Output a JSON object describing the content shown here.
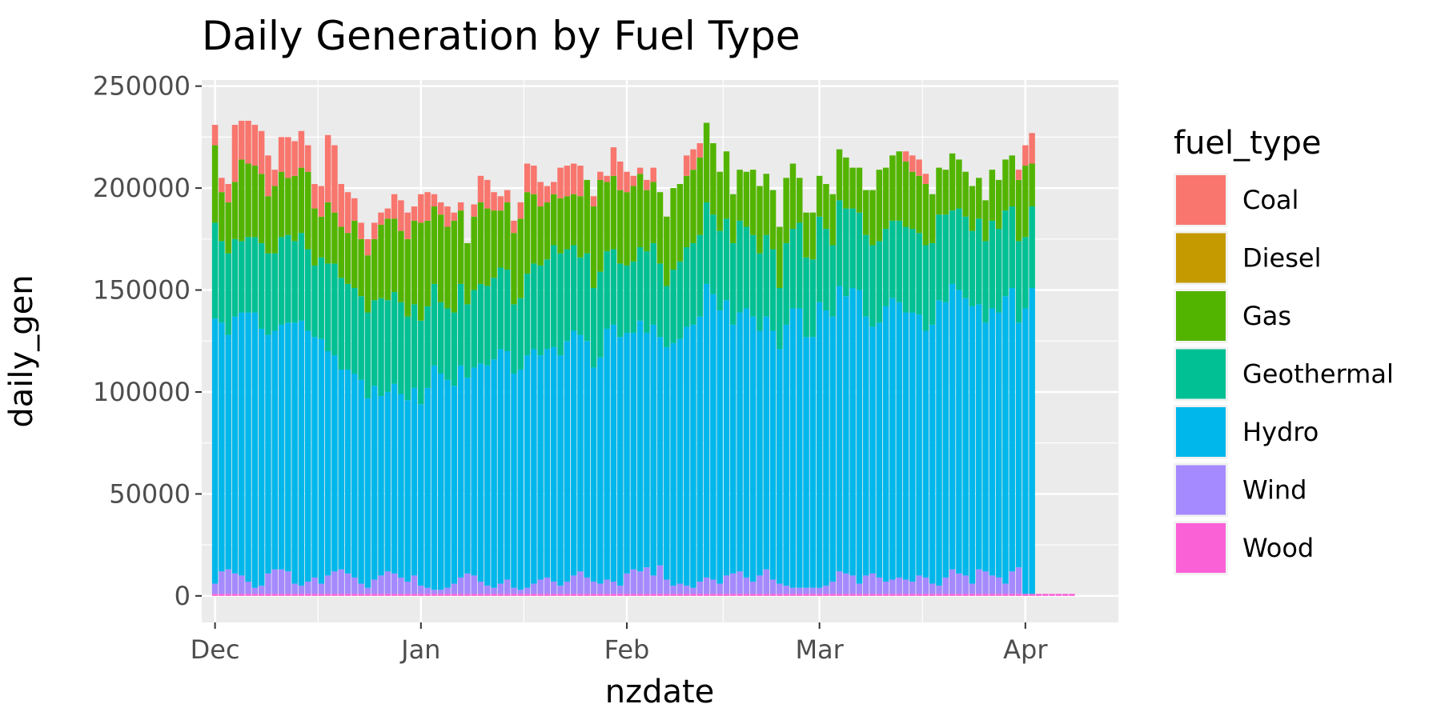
{
  "chart_data": {
    "type": "bar",
    "stacked": true,
    "title": "Daily Generation by Fuel Type",
    "xlabel": "nzdate",
    "ylabel": "daily_gen",
    "x_start": "2023-12-01",
    "x_end": "2024-04-13",
    "x_ticks": [
      {
        "date": "2023-12-01",
        "label": "Dec"
      },
      {
        "date": "2024-01-01",
        "label": "Jan"
      },
      {
        "date": "2024-02-01",
        "label": "Feb"
      },
      {
        "date": "2024-03-01",
        "label": "Mar"
      },
      {
        "date": "2024-04-01",
        "label": "Apr"
      }
    ],
    "y_ticks": [
      0,
      50000,
      100000,
      150000,
      200000,
      250000
    ],
    "y_tick_labels": [
      "0",
      "50000",
      "100000",
      "150000",
      "200000",
      "250000"
    ],
    "ylim": [
      -13000,
      253000
    ],
    "grid": true,
    "panel_background": "#ebebeb",
    "legend": {
      "title": "fuel_type",
      "position": "right",
      "entries": [
        "Coal",
        "Diesel",
        "Gas",
        "Geothermal",
        "Hydro",
        "Wind",
        "Wood"
      ]
    },
    "series": [
      {
        "name": "Wood",
        "color": "#fb61d7",
        "values": [
          1000,
          1000,
          1000,
          1000,
          1000,
          1000,
          1000,
          1000,
          1000,
          1000,
          1000,
          1000,
          1000,
          1000,
          1000,
          1000,
          1000,
          1000,
          1000,
          1000,
          1000,
          1000,
          1000,
          1000,
          1000,
          1000,
          1000,
          1000,
          1000,
          1000,
          1000,
          1000,
          1000,
          1000,
          1000,
          1000,
          1000,
          1000,
          1000,
          1000,
          1000,
          1000,
          1000,
          1000,
          1000,
          1000,
          1000,
          1000,
          1000,
          1000,
          1000,
          1000,
          1000,
          1000,
          1000,
          1000,
          1000,
          1000,
          1000,
          1000,
          1000,
          1000,
          1000,
          1000,
          1000,
          1000,
          1000,
          1000,
          1000,
          1000,
          1000,
          1000,
          1000,
          1000,
          1000,
          1000,
          1000,
          1000,
          1000,
          1000,
          1000,
          1000,
          1000,
          1000,
          1000,
          1000,
          1000,
          1000,
          1000,
          1000,
          1000,
          1000,
          1000,
          1000,
          1000,
          1000,
          1000,
          1000,
          1000,
          1000,
          1000,
          1000,
          1000,
          1000,
          1000,
          1000,
          1000,
          1000,
          1000,
          1000,
          1000,
          1000,
          1000,
          1000,
          1000,
          1000,
          1000,
          1000,
          1000,
          1000,
          1000,
          1000,
          1000,
          1000,
          1000,
          1000,
          1000,
          1000,
          1000,
          1000
        ]
      },
      {
        "name": "Wind",
        "color": "#a58aff",
        "values": [
          5000,
          11000,
          12000,
          10000,
          9000,
          6000,
          3000,
          4000,
          10000,
          12000,
          12000,
          11000,
          5000,
          4000,
          6000,
          8000,
          5000,
          9000,
          11000,
          12000,
          10000,
          8000,
          5000,
          3000,
          7000,
          9000,
          11000,
          10000,
          8000,
          6000,
          9000,
          4000,
          3000,
          2000,
          2000,
          3000,
          5000,
          8000,
          10000,
          9000,
          6000,
          4000,
          3000,
          5000,
          7000,
          3000,
          2000,
          3000,
          5000,
          7000,
          8000,
          6000,
          4000,
          6000,
          9000,
          11000,
          8000,
          6000,
          5000,
          7000,
          6000,
          4000,
          10000,
          12000,
          11000,
          13000,
          9000,
          14000,
          7000,
          4000,
          5000,
          4000,
          3000,
          6000,
          8000,
          7000,
          5000,
          9000,
          10000,
          11000,
          8000,
          6000,
          9000,
          12000,
          7000,
          5000,
          4000,
          3000,
          3000,
          3000,
          3000,
          3000,
          4000,
          6000,
          11000,
          10000,
          9000,
          5000,
          9000,
          10000,
          8000,
          6000,
          7000,
          8000,
          7000,
          6000,
          9000,
          8000,
          5000,
          4000,
          8000,
          12000,
          10000,
          9000,
          5000,
          12000,
          11000,
          9000,
          8000,
          5000,
          11000,
          13000
        ]
      },
      {
        "name": "Hydro",
        "color": "#00b7eb",
        "values": [
          130000,
          122000,
          115000,
          126000,
          129000,
          132000,
          135000,
          126000,
          117000,
          117000,
          120000,
          122000,
          128000,
          130000,
          123000,
          118000,
          120000,
          110000,
          106000,
          98000,
          100000,
          100000,
          100000,
          93000,
          95000,
          88000,
          88000,
          93000,
          90000,
          89000,
          92000,
          89000,
          98000,
          110000,
          106000,
          102000,
          97000,
          104000,
          96000,
          102000,
          107000,
          108000,
          112000,
          115000,
          112000,
          105000,
          108000,
          114000,
          115000,
          110000,
          112000,
          115000,
          113000,
          118000,
          120000,
          116000,
          116000,
          105000,
          111000,
          123000,
          126000,
          122000,
          118000,
          116000,
          123000,
          115000,
          123000,
          112000,
          114000,
          119000,
          120000,
          127000,
          129000,
          130000,
          144000,
          140000,
          134000,
          135000,
          122000,
          127000,
          132000,
          130000,
          120000,
          124000,
          122000,
          115000,
          128000,
          137000,
          137000,
          123000,
          123000,
          140000,
          135000,
          130000,
          140000,
          136000,
          141000,
          144000,
          127000,
          121000,
          125000,
          135000,
          138000,
          135000,
          131000,
          132000,
          128000,
          121000,
          127000,
          140000,
          135000,
          140000,
          139000,
          136000,
          136000,
          130000,
          122000,
          131000,
          130000,
          141000,
          139000,
          120000,
          140000,
          150000
        ]
      },
      {
        "name": "Geothermal",
        "color": "#00c094",
        "values": [
          47000,
          40000,
          40000,
          38000,
          35000,
          37000,
          37000,
          42000,
          40000,
          38000,
          43000,
          43000,
          40000,
          43000,
          40000,
          35000,
          40000,
          43000,
          45000,
          45000,
          42000,
          42000,
          41000,
          42000,
          42000,
          48000,
          45000,
          45000,
          45000,
          41000,
          41000,
          41000,
          40000,
          40000,
          35000,
          35000,
          36000,
          40000,
          36000,
          38000,
          39000,
          39000,
          40000,
          40000,
          40000,
          34000,
          35000,
          40000,
          42000,
          44000,
          44000,
          50000,
          50000,
          45000,
          42000,
          38000,
          43000,
          39000,
          42000,
          38000,
          37000,
          36000,
          33000,
          35000,
          36000,
          40000,
          40000,
          36000,
          30000,
          36000,
          38000,
          39000,
          40000,
          40000,
          40000,
          39000,
          39000,
          40000,
          40000,
          45000,
          40000,
          40000,
          38000,
          40000,
          40000,
          30000,
          40000,
          39000,
          42000,
          39000,
          38000,
          42000,
          40000,
          35000,
          42000,
          43000,
          39000,
          38000,
          40000,
          40000,
          40000,
          38000,
          38000,
          40000,
          42000,
          41000,
          40000,
          42000,
          40000,
          42000,
          43000,
          36000,
          40000,
          40000,
          37000,
          42000,
          40000,
          43000,
          41000,
          42000,
          40000,
          40000,
          35000,
          40000
        ]
      },
      {
        "name": "Gas",
        "color": "#53b400",
        "values": [
          38000,
          24000,
          25000,
          28000,
          40000,
          36000,
          35000,
          34000,
          28000,
          33000,
          32000,
          28000,
          32000,
          32000,
          38000,
          28000,
          20000,
          30000,
          25000,
          25000,
          25000,
          33000,
          28000,
          28000,
          30000,
          36000,
          40000,
          36000,
          35000,
          38000,
          41000,
          48000,
          42000,
          38000,
          43000,
          40000,
          45000,
          36000,
          30000,
          36000,
          40000,
          38000,
          33000,
          28000,
          33000,
          35000,
          39000,
          40000,
          34000,
          29000,
          28000,
          25000,
          27000,
          26000,
          25000,
          30000,
          36000,
          40000,
          45000,
          34000,
          36000,
          36000,
          36000,
          37000,
          36000,
          30000,
          30000,
          35000,
          34000,
          40000,
          38000,
          35000,
          36000,
          38000,
          39000,
          35000,
          29000,
          33000,
          24000,
          25000,
          27000,
          32000,
          33000,
          30000,
          29000,
          30000,
          32000,
          32000,
          22000,
          22000,
          23000,
          20000,
          22000,
          25000,
          25000,
          25000,
          20000,
          22000,
          22000,
          27000,
          35000,
          30000,
          32000,
          34000,
          32000,
          28000,
          28000,
          30000,
          24000,
          23000,
          22000,
          28000,
          24000,
          22000,
          22000,
          20000,
          20000,
          25000,
          24000,
          25000,
          25000,
          30000,
          35000,
          21000
        ]
      },
      {
        "name": "Diesel",
        "color": "#c49a00",
        "values": [
          0,
          0,
          0,
          0,
          0,
          0,
          0,
          0,
          0,
          0,
          0,
          0,
          0,
          0,
          0,
          0,
          0,
          0,
          0,
          0,
          0,
          0,
          0,
          0,
          0,
          0,
          0,
          0,
          0,
          0,
          0,
          0,
          0,
          0,
          0,
          0,
          0,
          0,
          0,
          0,
          0,
          0,
          0,
          0,
          0,
          0,
          0,
          0,
          0,
          0,
          0,
          0,
          0,
          0,
          0,
          0,
          0,
          0,
          0,
          0,
          0,
          0,
          0,
          0,
          0,
          0,
          0,
          0,
          0,
          0,
          0,
          0,
          0,
          0,
          0,
          0,
          0,
          0,
          0,
          0,
          0,
          0,
          0,
          0,
          0,
          0,
          0,
          0,
          0,
          0,
          0,
          0,
          0,
          0,
          0,
          0,
          0,
          0,
          0,
          0,
          0,
          0,
          0,
          0,
          0,
          0,
          0,
          0,
          0,
          0,
          0,
          0,
          0,
          0,
          0,
          0,
          0,
          0,
          0,
          0,
          0,
          0,
          0,
          0
        ]
      },
      {
        "name": "Coal",
        "color": "#f8766d",
        "values": [
          10000,
          7000,
          9000,
          28000,
          19000,
          21000,
          20000,
          21000,
          20000,
          8000,
          17000,
          20000,
          17000,
          18000,
          13000,
          12000,
          15000,
          33000,
          33000,
          21000,
          20000,
          11000,
          8000,
          8000,
          8000,
          6000,
          5000,
          12000,
          15000,
          13000,
          7000,
          14000,
          14000,
          6000,
          6000,
          10000,
          4000,
          4000,
          0,
          6000,
          13000,
          14000,
          9000,
          7000,
          6000,
          6000,
          8000,
          14000,
          14000,
          12000,
          8000,
          6000,
          15000,
          15000,
          15000,
          15000,
          0,
          5000,
          4000,
          3000,
          14000,
          14000,
          10000,
          5000,
          3000,
          5000,
          7000,
          0,
          0,
          0,
          0,
          10000,
          10000,
          7000,
          0,
          0,
          0,
          0,
          0,
          0,
          0,
          0,
          0,
          0,
          0,
          0,
          0,
          0,
          0,
          0,
          0,
          0,
          0,
          0,
          0,
          0,
          0,
          0,
          0,
          0,
          0,
          0,
          0,
          0,
          5000,
          8000,
          8000,
          5000,
          0,
          0,
          0,
          0,
          0,
          0,
          0,
          0,
          0,
          0,
          0,
          0,
          0,
          5000,
          10000,
          15000
        ]
      }
    ]
  }
}
